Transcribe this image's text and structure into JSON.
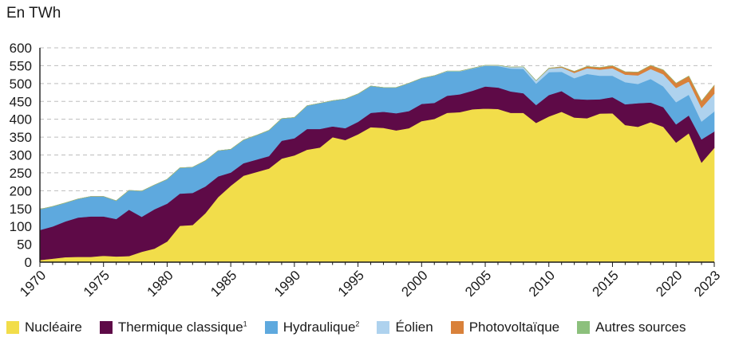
{
  "chart_data": {
    "type": "area",
    "stacked": true,
    "unit_label": "En TWh",
    "x": [
      1970,
      1971,
      1972,
      1973,
      1974,
      1975,
      1976,
      1977,
      1978,
      1979,
      1980,
      1981,
      1982,
      1983,
      1984,
      1985,
      1986,
      1987,
      1988,
      1989,
      1990,
      1991,
      1992,
      1993,
      1994,
      1995,
      1996,
      1997,
      1998,
      1999,
      2000,
      2001,
      2002,
      2003,
      2004,
      2005,
      2006,
      2007,
      2008,
      2009,
      2010,
      2011,
      2012,
      2013,
      2014,
      2015,
      2016,
      2017,
      2018,
      2019,
      2020,
      2021,
      2022,
      2023
    ],
    "x_ticks": [
      1970,
      1975,
      1980,
      1985,
      1990,
      1995,
      2000,
      2005,
      2010,
      2015,
      2020,
      2023
    ],
    "ylim": [
      0,
      600
    ],
    "y_ticks": [
      0,
      50,
      100,
      150,
      200,
      250,
      300,
      350,
      400,
      450,
      500,
      550,
      600
    ],
    "grid": true,
    "legend_position": "bottom",
    "series": [
      {
        "name": "Nucléaire",
        "sup": "",
        "color": "#f2dd4a",
        "values": [
          6,
          10,
          14,
          15,
          15,
          18,
          16,
          17,
          29,
          38,
          58,
          102,
          104,
          137,
          182,
          214,
          242,
          252,
          262,
          290,
          299,
          315,
          321,
          350,
          342,
          358,
          378,
          376,
          369,
          375,
          395,
          401,
          418,
          420,
          428,
          430,
          429,
          418,
          418,
          390,
          408,
          421,
          405,
          403,
          416,
          417,
          384,
          379,
          392,
          379,
          335,
          361,
          279,
          320
        ]
      },
      {
        "name": "Thermique classique",
        "sup": "1",
        "color": "#5e0a47",
        "values": [
          84,
          90,
          100,
          110,
          113,
          110,
          105,
          130,
          98,
          110,
          106,
          90,
          90,
          75,
          58,
          37,
          35,
          35,
          35,
          50,
          48,
          58,
          52,
          30,
          33,
          35,
          40,
          45,
          48,
          48,
          48,
          45,
          48,
          50,
          52,
          62,
          60,
          60,
          55,
          50,
          60,
          58,
          52,
          52,
          40,
          45,
          58,
          66,
          55,
          55,
          51,
          50,
          65,
          46
        ]
      },
      {
        "name": "Hydraulique",
        "sup": "2",
        "color": "#5ea9de",
        "values": [
          58,
          56,
          52,
          52,
          56,
          56,
          51,
          54,
          72,
          68,
          68,
          72,
          72,
          72,
          72,
          65,
          65,
          68,
          72,
          62,
          58,
          65,
          72,
          72,
          82,
          78,
          75,
          68,
          72,
          78,
          72,
          76,
          68,
          64,
          62,
          58,
          60,
          64,
          68,
          60,
          64,
          54,
          58,
          72,
          66,
          60,
          62,
          54,
          66,
          58,
          62,
          58,
          50,
          56
        ]
      },
      {
        "name": "Éolien",
        "sup": "",
        "color": "#aed2ee",
        "values": [
          0,
          0,
          0,
          0,
          0,
          0,
          0,
          0,
          0,
          0,
          0,
          0,
          0,
          0,
          0,
          0,
          0,
          0,
          0,
          0,
          0,
          0,
          0,
          0,
          0,
          0,
          0,
          0,
          0,
          0,
          0,
          0,
          1,
          1,
          1,
          1,
          2,
          4,
          6,
          8,
          10,
          12,
          15,
          16,
          17,
          21,
          21,
          24,
          28,
          34,
          40,
          37,
          38,
          50
        ]
      },
      {
        "name": "Photovoltaïque",
        "sup": "",
        "color": "#d9813a",
        "values": [
          0,
          0,
          0,
          0,
          0,
          0,
          0,
          0,
          0,
          0,
          0,
          0,
          0,
          0,
          0,
          0,
          0,
          0,
          0,
          0,
          0,
          0,
          0,
          0,
          0,
          0,
          0,
          0,
          0,
          0,
          0,
          0,
          0,
          0,
          0,
          0,
          0,
          0,
          0,
          0,
          1,
          2,
          4,
          5,
          6,
          7,
          8,
          9,
          10,
          12,
          13,
          15,
          19,
          23
        ]
      },
      {
        "name": "Autres sources",
        "sup": "",
        "color": "#8cc07c",
        "values": [
          0,
          0,
          0,
          0,
          0,
          0,
          0,
          0,
          0,
          0,
          0,
          0,
          0,
          0,
          0,
          0,
          0,
          0,
          0,
          0,
          0,
          0,
          0,
          0,
          0,
          0,
          0,
          0,
          0,
          0,
          0,
          0,
          0,
          0,
          0,
          0,
          0,
          0,
          0,
          0,
          0,
          0,
          0,
          0,
          0,
          0,
          0,
          0,
          0,
          0,
          0,
          0,
          0,
          0
        ]
      }
    ]
  }
}
